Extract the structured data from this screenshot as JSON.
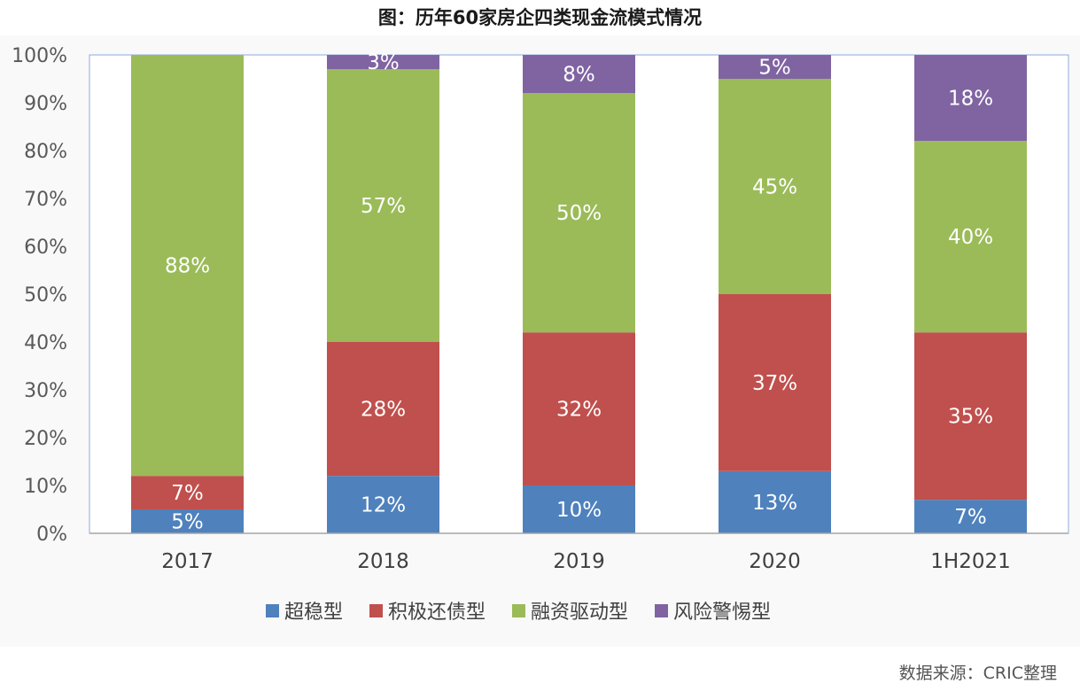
{
  "chart_data": {
    "type": "bar",
    "stacked": true,
    "title": "图：历年60家房企四类现金流模式情况",
    "categories": [
      "2017",
      "2018",
      "2019",
      "2020",
      "1H2021"
    ],
    "series": [
      {
        "name": "超稳型",
        "color": "#4F81BD",
        "values": [
          5,
          12,
          10,
          13,
          7
        ],
        "labels": [
          "5%",
          "12%",
          "10%",
          "13%",
          "7%"
        ]
      },
      {
        "name": "积极还债型",
        "color": "#C0504D",
        "values": [
          7,
          28,
          32,
          37,
          35
        ],
        "labels": [
          "7%",
          "28%",
          "32%",
          "37%",
          "35%"
        ]
      },
      {
        "name": "融资驱动型",
        "color": "#9BBB59",
        "values": [
          88,
          57,
          50,
          45,
          40
        ],
        "labels": [
          "88%",
          "57%",
          "50%",
          "45%",
          "40%"
        ]
      },
      {
        "name": "风险警惕型",
        "color": "#8064A2",
        "values": [
          0,
          3,
          8,
          5,
          18
        ],
        "labels": [
          "",
          "3%",
          "8%",
          "5%",
          "18%"
        ]
      }
    ],
    "ylim": [
      0,
      100
    ],
    "yticks": [
      "0%",
      "10%",
      "20%",
      "30%",
      "40%",
      "50%",
      "60%",
      "70%",
      "80%",
      "90%",
      "100%"
    ],
    "legend_position": "bottom",
    "grid": false
  },
  "source_note": "数据来源：CRIC整理"
}
